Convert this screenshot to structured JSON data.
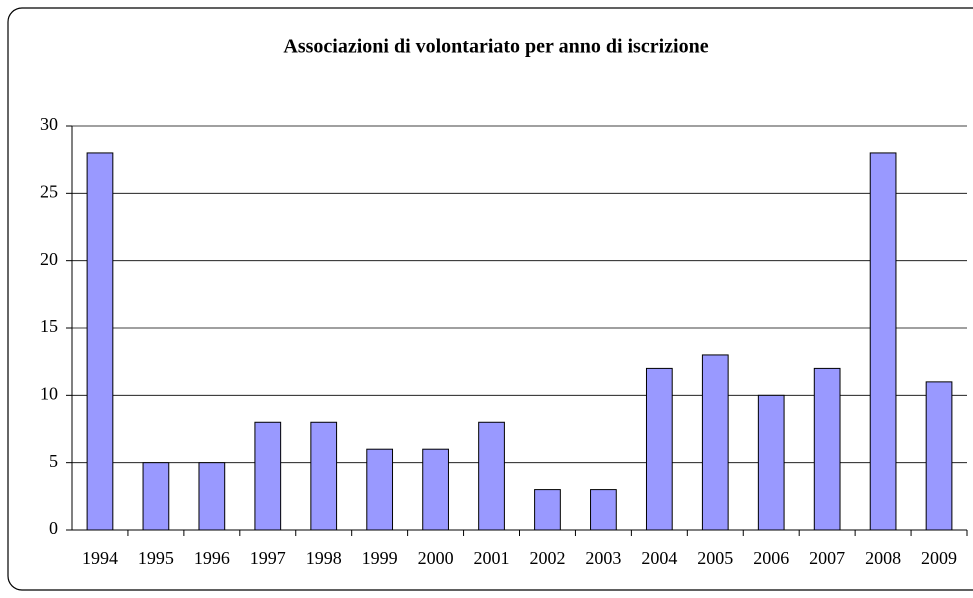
{
  "chart_data": {
    "type": "bar",
    "title": "Associazioni di volontariato per anno di iscrizione",
    "categories": [
      "1994",
      "1995",
      "1996",
      "1997",
      "1998",
      "1999",
      "2000",
      "2001",
      "2002",
      "2003",
      "2004",
      "2005",
      "2006",
      "2007",
      "2008",
      "2009"
    ],
    "values": [
      28,
      5,
      5,
      8,
      8,
      6,
      6,
      8,
      3,
      3,
      12,
      13,
      10,
      12,
      28,
      11
    ],
    "color": "#9999ff",
    "ylim": [
      0,
      30
    ],
    "yticks": [
      0,
      5,
      10,
      15,
      20,
      25,
      30
    ],
    "grid": true
  }
}
